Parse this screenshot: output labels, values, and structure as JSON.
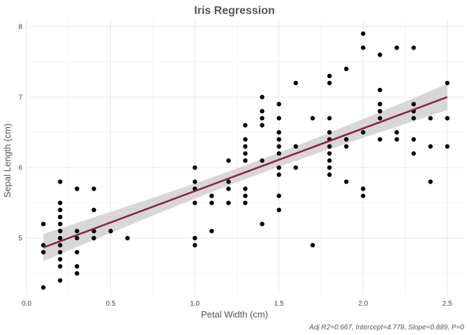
{
  "chart_data": {
    "type": "scatter",
    "title": "Iris Regression",
    "xlabel": "Petal Width (cm)",
    "ylabel": "Sepal Length (cm)",
    "caption": "Adj R2=0.667, Intercept=4.778, Slope=0.889, P=0",
    "xlim": [
      0.0,
      2.6
    ],
    "ylim": [
      4.2,
      8.1
    ],
    "x_ticks": [
      0.0,
      0.5,
      1.0,
      1.5,
      2.0,
      2.5
    ],
    "x_tick_labels": [
      "0.0",
      "0.5",
      "1.0",
      "1.5",
      "2.0",
      "2.5"
    ],
    "y_ticks": [
      5,
      6,
      7,
      8
    ],
    "y_tick_labels": [
      "5",
      "6",
      "7",
      "8"
    ],
    "grid": true,
    "regression": {
      "intercept": 4.778,
      "slope": 0.889,
      "color": "#8B2252",
      "band_color": "#d3d3d3"
    },
    "point_color": "#000000",
    "points": [
      [
        0.1,
        4.3
      ],
      [
        0.1,
        4.8
      ],
      [
        0.1,
        4.9
      ],
      [
        0.1,
        5.2
      ],
      [
        0.2,
        4.4
      ],
      [
        0.2,
        4.6
      ],
      [
        0.2,
        4.7
      ],
      [
        0.2,
        4.8
      ],
      [
        0.2,
        4.9
      ],
      [
        0.2,
        5.0
      ],
      [
        0.2,
        5.1
      ],
      [
        0.2,
        5.2
      ],
      [
        0.2,
        5.3
      ],
      [
        0.2,
        5.4
      ],
      [
        0.2,
        5.5
      ],
      [
        0.2,
        5.8
      ],
      [
        0.3,
        4.5
      ],
      [
        0.3,
        4.6
      ],
      [
        0.3,
        4.8
      ],
      [
        0.3,
        5.0
      ],
      [
        0.3,
        5.1
      ],
      [
        0.3,
        5.7
      ],
      [
        0.4,
        5.0
      ],
      [
        0.4,
        5.1
      ],
      [
        0.4,
        5.4
      ],
      [
        0.4,
        5.7
      ],
      [
        0.5,
        5.1
      ],
      [
        0.6,
        5.0
      ],
      [
        1.0,
        4.9
      ],
      [
        1.0,
        5.0
      ],
      [
        1.0,
        5.5
      ],
      [
        1.0,
        5.7
      ],
      [
        1.0,
        5.8
      ],
      [
        1.0,
        6.0
      ],
      [
        1.1,
        5.1
      ],
      [
        1.1,
        5.5
      ],
      [
        1.1,
        5.6
      ],
      [
        1.2,
        5.5
      ],
      [
        1.2,
        5.7
      ],
      [
        1.2,
        5.8
      ],
      [
        1.2,
        6.1
      ],
      [
        1.3,
        5.5
      ],
      [
        1.3,
        5.6
      ],
      [
        1.3,
        5.7
      ],
      [
        1.3,
        6.1
      ],
      [
        1.3,
        6.2
      ],
      [
        1.3,
        6.3
      ],
      [
        1.3,
        6.4
      ],
      [
        1.3,
        6.6
      ],
      [
        1.4,
        5.2
      ],
      [
        1.4,
        6.1
      ],
      [
        1.4,
        6.6
      ],
      [
        1.4,
        6.7
      ],
      [
        1.4,
        6.8
      ],
      [
        1.4,
        7.0
      ],
      [
        1.5,
        5.4
      ],
      [
        1.5,
        5.6
      ],
      [
        1.5,
        5.9
      ],
      [
        1.5,
        6.0
      ],
      [
        1.5,
        6.2
      ],
      [
        1.5,
        6.3
      ],
      [
        1.5,
        6.4
      ],
      [
        1.5,
        6.5
      ],
      [
        1.5,
        6.7
      ],
      [
        1.5,
        6.9
      ],
      [
        1.6,
        6.0
      ],
      [
        1.6,
        6.3
      ],
      [
        1.6,
        7.2
      ],
      [
        1.7,
        4.9
      ],
      [
        1.7,
        6.7
      ],
      [
        1.8,
        5.9
      ],
      [
        1.8,
        6.0
      ],
      [
        1.8,
        6.1
      ],
      [
        1.8,
        6.2
      ],
      [
        1.8,
        6.3
      ],
      [
        1.8,
        6.4
      ],
      [
        1.8,
        6.5
      ],
      [
        1.8,
        6.7
      ],
      [
        1.8,
        7.2
      ],
      [
        1.8,
        7.3
      ],
      [
        1.9,
        5.8
      ],
      [
        1.9,
        6.3
      ],
      [
        1.9,
        6.4
      ],
      [
        1.9,
        7.4
      ],
      [
        2.0,
        5.6
      ],
      [
        2.0,
        5.7
      ],
      [
        2.0,
        6.5
      ],
      [
        2.0,
        7.7
      ],
      [
        2.0,
        7.9
      ],
      [
        2.1,
        6.4
      ],
      [
        2.1,
        6.7
      ],
      [
        2.1,
        6.8
      ],
      [
        2.1,
        6.9
      ],
      [
        2.1,
        7.1
      ],
      [
        2.1,
        7.6
      ],
      [
        2.2,
        6.4
      ],
      [
        2.2,
        6.5
      ],
      [
        2.2,
        7.7
      ],
      [
        2.3,
        6.2
      ],
      [
        2.3,
        6.4
      ],
      [
        2.3,
        6.7
      ],
      [
        2.3,
        6.8
      ],
      [
        2.3,
        6.9
      ],
      [
        2.3,
        7.7
      ],
      [
        2.4,
        5.8
      ],
      [
        2.4,
        6.3
      ],
      [
        2.4,
        6.7
      ],
      [
        2.5,
        6.3
      ],
      [
        2.5,
        6.7
      ],
      [
        2.5,
        7.2
      ]
    ]
  }
}
